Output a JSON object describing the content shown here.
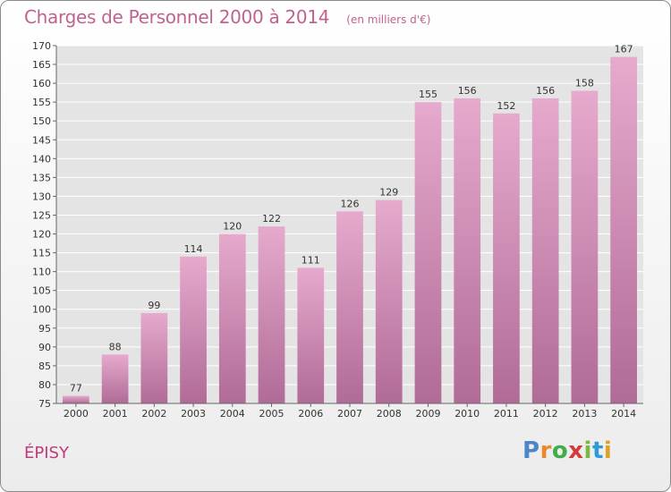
{
  "chart_data": {
    "type": "bar",
    "title": "Charges de Personnel 2000 à 2014",
    "subtitle": "(en milliers d'€)",
    "categories": [
      "2000",
      "2001",
      "2002",
      "2003",
      "2004",
      "2005",
      "2006",
      "2007",
      "2008",
      "2009",
      "2010",
      "2011",
      "2012",
      "2013",
      "2014"
    ],
    "values": [
      77,
      88,
      99,
      114,
      120,
      122,
      111,
      126,
      129,
      155,
      156,
      152,
      156,
      158,
      167
    ],
    "ylim": [
      75,
      170
    ],
    "yticks": [
      75,
      80,
      85,
      90,
      95,
      100,
      105,
      110,
      115,
      120,
      125,
      130,
      135,
      140,
      145,
      150,
      155,
      160,
      165,
      170
    ],
    "grid": true,
    "bar_color_top": "#e6aacd",
    "bar_color_bottom": "#b06b97"
  },
  "location_label": "ÉPISY",
  "brand": {
    "letters": [
      "P",
      "r",
      "o",
      "x",
      "i",
      "t",
      "i"
    ],
    "colors": [
      "#4a86c8",
      "#e8892f",
      "#3fae4a",
      "#d43a3a",
      "#7ab840",
      "#2f9ad8",
      "#e0a020"
    ]
  }
}
